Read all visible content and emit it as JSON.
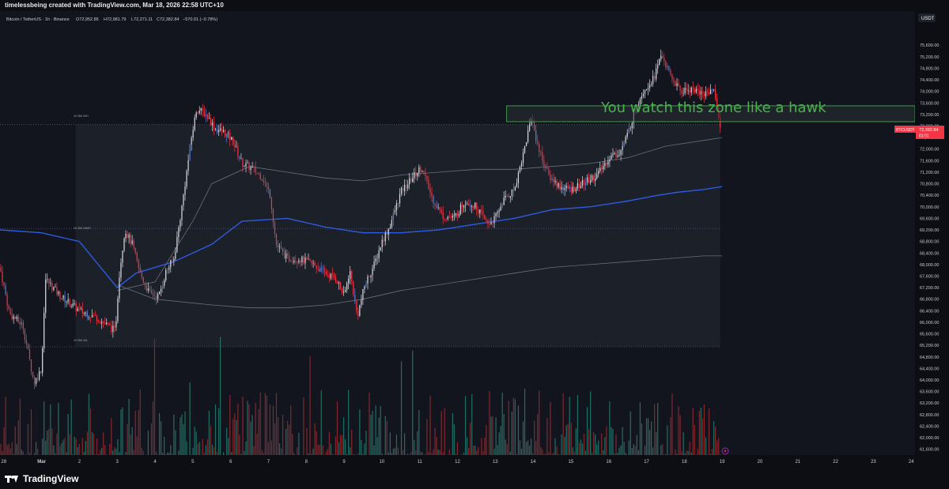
{
  "header": {
    "attribution": "timelessbeing created with TradingView.com, Mar 18, 2026 22:58 UTC+10"
  },
  "legend": {
    "symbol_line": "Bitcoin / TetherUS · 1h · Binance",
    "open": "O72,952.85",
    "high": "H72,981.79",
    "low": "L72,271.11",
    "close": "C72,382.84",
    "change": "−570.01 (−0.78%)"
  },
  "annotation": {
    "text": "You watch this zone like a hawk",
    "color": "#4caf50"
  },
  "price_scale": {
    "currency_label": "USDT",
    "symbol_tag": "BTCUSDT",
    "last_price_label": "72,382.84",
    "countdown": "01:01"
  },
  "profile_labels": {
    "vah": "40 356 VAH",
    "vwap": "40 356 VWAP",
    "val": "40 356 VAL"
  },
  "branding": {
    "logo_text": "TradingView"
  },
  "colors": {
    "up": "#d9dce3",
    "down": "#f23645",
    "blue_candle": "#5b7fd6",
    "vol_up": "#22786b",
    "vol_down": "#8e2a31",
    "vwap": "#2e5be0",
    "zone_border": "#3e9b4a"
  },
  "chart_data": {
    "type": "candlestick",
    "title": "",
    "symbol": "Bitcoin / TetherUS",
    "interval": "1h",
    "exchange": "Binance",
    "ylim": [
      61400,
      76400
    ],
    "y_ticks": [
      75600,
      75200,
      74800,
      74400,
      74000,
      73600,
      73200,
      72800,
      72400,
      72000,
      71600,
      71200,
      70800,
      70400,
      70000,
      69600,
      69200,
      68800,
      68400,
      68000,
      67600,
      67200,
      66800,
      66400,
      66000,
      65600,
      65200,
      64800,
      64400,
      64000,
      63600,
      63200,
      62800,
      62400,
      62000,
      61600
    ],
    "x_tick_labels": [
      "28",
      "Mar",
      "2",
      "3",
      "4",
      "5",
      "6",
      "7",
      "8",
      "9",
      "10",
      "11",
      "12",
      "13",
      "14",
      "15",
      "16",
      "17",
      "18",
      "19",
      "20",
      "21",
      "22",
      "23",
      "24"
    ],
    "x_tick_days": [
      0,
      1,
      2,
      3,
      4,
      5,
      6,
      7,
      8,
      9,
      10,
      11,
      12,
      13,
      14,
      15,
      16,
      17,
      18,
      19,
      20,
      21,
      22,
      23,
      24
    ],
    "x_range_days": [
      -0.1,
      24.1
    ],
    "grid": false,
    "candle_count": 450,
    "price_path": [
      [
        -0.1,
        67900
      ],
      [
        0.15,
        66300
      ],
      [
        0.5,
        65900
      ],
      [
        0.8,
        63900
      ],
      [
        1.0,
        64400
      ],
      [
        1.1,
        67500
      ],
      [
        1.5,
        66900
      ],
      [
        2.0,
        66400
      ],
      [
        2.4,
        66200
      ],
      [
        2.95,
        65700
      ],
      [
        3.05,
        67600
      ],
      [
        3.2,
        69200
      ],
      [
        3.4,
        68700
      ],
      [
        3.6,
        67700
      ],
      [
        3.85,
        67000
      ],
      [
        4.1,
        66900
      ],
      [
        4.3,
        67800
      ],
      [
        4.5,
        68200
      ],
      [
        4.7,
        69900
      ],
      [
        4.95,
        72300
      ],
      [
        5.1,
        73400
      ],
      [
        5.35,
        73200
      ],
      [
        5.6,
        72700
      ],
      [
        5.8,
        72600
      ],
      [
        6.05,
        72300
      ],
      [
        6.3,
        71500
      ],
      [
        6.6,
        71300
      ],
      [
        6.85,
        71000
      ],
      [
        7.05,
        70400
      ],
      [
        7.2,
        68700
      ],
      [
        7.5,
        68200
      ],
      [
        7.8,
        68200
      ],
      [
        8.2,
        68000
      ],
      [
        8.5,
        67700
      ],
      [
        8.8,
        67500
      ],
      [
        9.0,
        66900
      ],
      [
        9.15,
        67800
      ],
      [
        9.35,
        66200
      ],
      [
        9.55,
        67300
      ],
      [
        9.8,
        68000
      ],
      [
        10.0,
        68800
      ],
      [
        10.2,
        69300
      ],
      [
        10.5,
        70500
      ],
      [
        10.8,
        71000
      ],
      [
        11.05,
        71400
      ],
      [
        11.3,
        70400
      ],
      [
        11.6,
        69700
      ],
      [
        11.9,
        69600
      ],
      [
        12.2,
        70200
      ],
      [
        12.5,
        70000
      ],
      [
        12.8,
        69400
      ],
      [
        13.0,
        69600
      ],
      [
        13.2,
        70200
      ],
      [
        13.5,
        70600
      ],
      [
        13.75,
        71900
      ],
      [
        13.95,
        73100
      ],
      [
        14.15,
        72000
      ],
      [
        14.4,
        71100
      ],
      [
        14.7,
        70700
      ],
      [
        15.0,
        70600
      ],
      [
        15.3,
        70800
      ],
      [
        15.7,
        71100
      ],
      [
        16.0,
        71700
      ],
      [
        16.3,
        71900
      ],
      [
        16.5,
        72500
      ],
      [
        16.7,
        73400
      ],
      [
        16.9,
        74000
      ],
      [
        17.2,
        74500
      ],
      [
        17.4,
        75300
      ],
      [
        17.6,
        74600
      ],
      [
        17.9,
        74000
      ],
      [
        18.2,
        74100
      ],
      [
        18.5,
        73900
      ],
      [
        18.75,
        74100
      ],
      [
        18.85,
        73700
      ],
      [
        18.97,
        72380
      ]
    ],
    "series": [
      {
        "name": "",
        "type": "line",
        "color": "#2e5be0",
        "points": [
          [
            -0.1,
            69200
          ],
          [
            1.0,
            69100
          ],
          [
            2.0,
            68800
          ],
          [
            3.0,
            67200
          ],
          [
            3.5,
            67700
          ],
          [
            4.5,
            68100
          ],
          [
            5.5,
            68700
          ],
          [
            6.3,
            69500
          ],
          [
            7.5,
            69600
          ],
          [
            8.5,
            69300
          ],
          [
            9.5,
            69100
          ],
          [
            10.5,
            69100
          ],
          [
            11.5,
            69200
          ],
          [
            12.5,
            69400
          ],
          [
            13.5,
            69600
          ],
          [
            14.5,
            69900
          ],
          [
            15.5,
            70000
          ],
          [
            16.5,
            70200
          ],
          [
            17.3,
            70400
          ],
          [
            17.8,
            70500
          ],
          [
            18.5,
            70600
          ],
          [
            19.0,
            70700
          ]
        ]
      },
      {
        "name": "",
        "type": "line",
        "color": "#6b6f79",
        "points": [
          [
            3.0,
            67100
          ],
          [
            4.0,
            67400
          ],
          [
            5.0,
            69500
          ],
          [
            5.5,
            70800
          ],
          [
            6.5,
            71400
          ],
          [
            7.5,
            71200
          ],
          [
            8.5,
            71000
          ],
          [
            9.5,
            70900
          ],
          [
            10.5,
            71100
          ],
          [
            11.5,
            71200
          ],
          [
            12.5,
            71300
          ],
          [
            13.5,
            71300
          ],
          [
            14.5,
            71400
          ],
          [
            15.5,
            71500
          ],
          [
            16.5,
            71700
          ],
          [
            17.5,
            72100
          ],
          [
            18.5,
            72300
          ],
          [
            19.0,
            72400
          ]
        ]
      },
      {
        "name": "",
        "type": "line",
        "color": "#6b6f79",
        "points": [
          [
            3.0,
            67300
          ],
          [
            4.0,
            66800
          ],
          [
            5.5,
            66600
          ],
          [
            6.5,
            66500
          ],
          [
            7.5,
            66500
          ],
          [
            8.5,
            66600
          ],
          [
            9.5,
            66800
          ],
          [
            10.5,
            67100
          ],
          [
            11.5,
            67300
          ],
          [
            12.5,
            67500
          ],
          [
            13.5,
            67700
          ],
          [
            14.5,
            67900
          ],
          [
            15.5,
            68000
          ],
          [
            16.5,
            68100
          ],
          [
            17.5,
            68200
          ],
          [
            18.5,
            68300
          ],
          [
            19.0,
            68300
          ]
        ]
      }
    ],
    "zone": {
      "x_start": 13.3,
      "x_end": 24.1,
      "y_low": 72950,
      "y_high": 73500
    },
    "value_area": {
      "x_start": 1.9,
      "x_end": 18.95,
      "vah": 72850,
      "val": 65150,
      "vwap_level": 69250
    },
    "volume_max_fraction": 0.28
  }
}
